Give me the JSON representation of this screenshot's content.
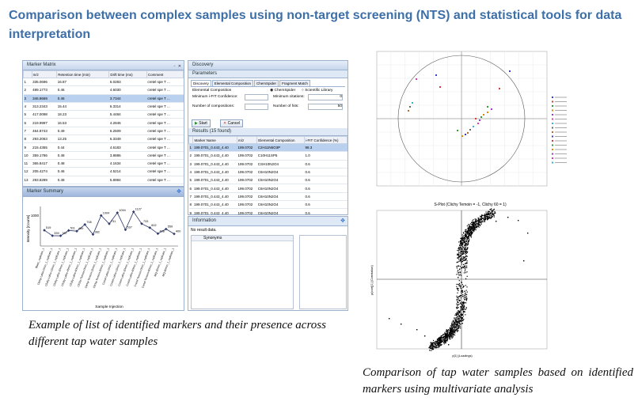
{
  "title": "Comparison between complex samples using non-target screening (NTS) and statistical tools for data interpretation",
  "caption_left": "Example of list of identified markers and their presence across different tap water samples",
  "caption_right": "Comparison of tap water samples based on identified markers using multivariate analysis",
  "marker_matrix": {
    "title": "Marker Matrix",
    "columns": [
      "",
      "m/z",
      "Retention time (min)",
      "Drift time (ms)",
      "Comment"
    ],
    "rows": [
      [
        "1",
        "335.0696",
        "16.87",
        "6.0283",
        "cretel spe T ..."
      ],
      [
        "2",
        "489.1773",
        "0.46",
        "4.6030",
        "cretel spe T ..."
      ],
      [
        "3",
        "346.8669",
        "0.46",
        "3.7344",
        "cretel spe T ..."
      ],
      [
        "4",
        "313.2343",
        "15.44",
        "6.3314",
        "cretel spe T ..."
      ],
      [
        "5",
        "417.0098",
        "18.23",
        "5.4484",
        "cretel spe T ..."
      ],
      [
        "6",
        "219.9997",
        "16.53",
        "4.2846",
        "cretel spe T ..."
      ],
      [
        "7",
        "464.8743",
        "0.49",
        "6.2509",
        "cretel spe T ..."
      ],
      [
        "8",
        "293.2063",
        "13.25",
        "6.3349",
        "cretel spe T ..."
      ],
      [
        "9",
        "215.4355",
        "0.44",
        "4.6183",
        "cretel spe T ..."
      ],
      [
        "10",
        "359.1786",
        "0.48",
        "3.8886",
        "cretel spe T ..."
      ],
      [
        "11",
        "365.8417",
        "0.48",
        "4.1634",
        "cretel spe T ..."
      ],
      [
        "12",
        "205.4274",
        "0.46",
        "4.5214",
        "cretel spe T ..."
      ],
      [
        "13",
        "293.8289",
        "0.48",
        "5.8984",
        "cretel spe T ..."
      ],
      [
        "14",
        "414.4968",
        "0.49",
        "4.1766",
        "cretel spe T ..."
      ]
    ],
    "selected_row": 2
  },
  "marker_summary": {
    "title": "Marker Summary",
    "ylabel": "Intensity [Counts]",
    "xlabel": "Sample Injection",
    "ytick": "1000",
    "point_labels": [
      "519",
      "339",
      "337",
      "511",
      "489",
      "708",
      "382",
      "1004",
      "731",
      "1094",
      "537",
      "1127",
      "733",
      "602",
      "408",
      "559",
      "400"
    ],
    "values": [
      519,
      339,
      337,
      511,
      489,
      708,
      382,
      1004,
      731,
      1094,
      537,
      1127,
      733,
      602,
      408,
      559,
      400
    ],
    "samples": [
      "Blanc_replicate_1",
      "Clichy-Lahie-0min_1_replicate_1",
      "Clichy-Lahie-15min_1_replicate_1",
      "Clichy-Lahie-30min_1_replicate_1",
      "Clichy-Lahie-45min_1_replicate_1",
      "Clichy-Lahie-60min_1_replicate_1",
      "Clichy-Temoin-0min_1_replicate_1",
      "Clichy-Temoin-15min_1_replicate_1",
      "Clichy-Temoin-30min_1_replicate_1",
      "Cretel-Lahie-0min_1_replicate_1",
      "Cretel-Lahie-15min_1_replicate_1",
      "Cretel-Lahie-30min_1_replicate_1",
      "Cretel-Lahie-60min_1_replicate_1",
      "Cretel-Temoin-0min_1_replicate_1",
      "Cretel-Temoin-60min_1_replicate_1",
      "MQ-30min_1_replicate_1",
      "MQ-60min_1_replicate_1"
    ]
  },
  "discovery": {
    "title": "Discovery",
    "parameters_label": "Parameters",
    "tabs": [
      "Discovery",
      "Elemental Composition",
      "ChemSpider",
      "Fragment Match"
    ],
    "elemental_composition": "Elemental Composition",
    "min_ifit_label": "Minimum i-FIT Confidence:",
    "num_comp_label": "Number of compositions:",
    "chemspider": "ChemSpider",
    "scientific_library": "Scientific Library",
    "min_citations_label": "Minimum citations:",
    "min_citations_value": "0",
    "num_hits_label": "Number of hits:",
    "num_hits_value": "50",
    "start": "Start",
    "cancel": "Cancel",
    "results_title": "Results (15 found)",
    "result_columns": [
      "",
      "Marker Name",
      "m/z",
      "Elemental Composition",
      "i-FIT Confidence (%)"
    ],
    "results": [
      [
        "1",
        "199.0701_0.443_4.40",
        "199.0702",
        "C2H11N6O3P",
        "98.3"
      ],
      [
        "2",
        "199.0701_0.443_4.40",
        "199.0702",
        "C10H11SP5",
        "1.0"
      ],
      [
        "3",
        "199.0701_0.443_4.40",
        "199.0702",
        "CSH10N2O4",
        "0.6"
      ],
      [
        "4",
        "199.0701_0.443_4.40",
        "199.0702",
        "C6H10N2O4",
        "0.6"
      ],
      [
        "5",
        "199.0701_0.443_4.40",
        "199.0702",
        "C5H10N2O4",
        "0.6"
      ],
      [
        "6",
        "199.0701_0.443_4.40",
        "199.0702",
        "C6H10N2O4",
        "0.6"
      ],
      [
        "7",
        "199.0701_0.443_4.40",
        "199.0702",
        "C6H10N2O4",
        "0.6"
      ],
      [
        "8",
        "199.0701_0.443_4.40",
        "199.0702",
        "C6H10N2O4",
        "0.6"
      ],
      [
        "9",
        "199.0701_0.443_4.40",
        "199.0702",
        "C6H10N2O4",
        "0.6"
      ]
    ],
    "information_title": "Information",
    "no_result": "No result data.",
    "synonyms": "Synonyms"
  },
  "splot": {
    "title": "S-Plot (Clichy Temoin = -1, Clichy 60 = 1)",
    "xlabel": "p[1] (Loadings)",
    "ylabel": "p(corr)[1] (Correlation)"
  },
  "colors": {
    "title": "#3d6fa8",
    "panel_border": "#9db2cf",
    "selection": "#b9d1ee",
    "line": "#2f3a6a"
  }
}
